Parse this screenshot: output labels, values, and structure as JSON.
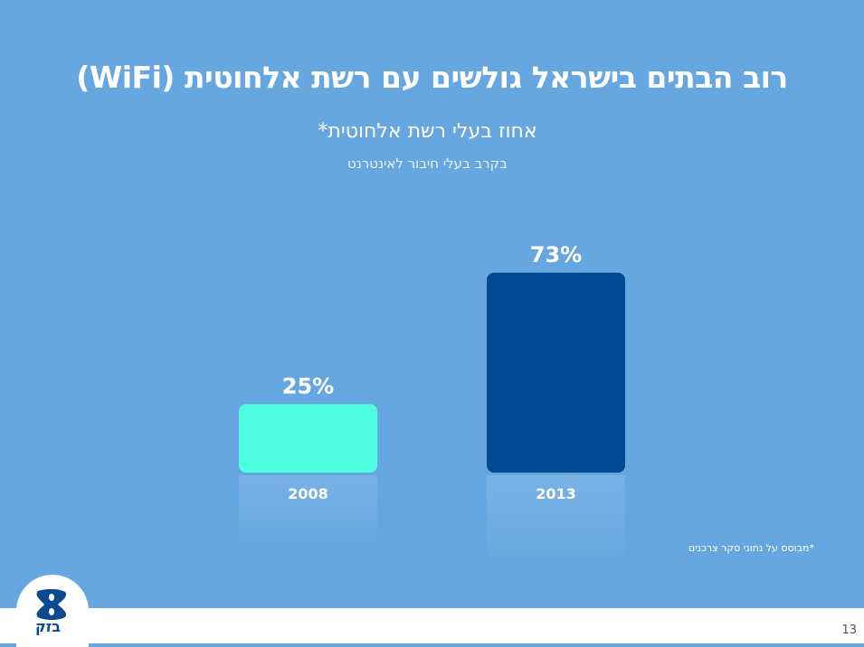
{
  "slide": {
    "title": "רוב הבתים בישראל גולשים עם רשת אלחוטית (WiFi)",
    "subtitle": "אחוז בעלי רשת אלחוטית*",
    "subsubtitle": "בקרב בעלי חיבור לאינטרנט",
    "footnote": "*מבוסס על נתוני סקר צרכנים",
    "page_number": "13",
    "logo_text": "בזק",
    "background_color": "#67a7e1"
  },
  "chart_data": {
    "type": "bar",
    "title": "אחוז בעלי רשת אלחוטית*",
    "categories": [
      "2008",
      "2013"
    ],
    "values": [
      25,
      73
    ],
    "data_labels": [
      "25%",
      "73%"
    ],
    "colors": [
      "#4effdf",
      "#004a92"
    ],
    "unit": "%",
    "ylim": [
      0,
      100
    ],
    "grid": false,
    "axes_visible": false
  }
}
